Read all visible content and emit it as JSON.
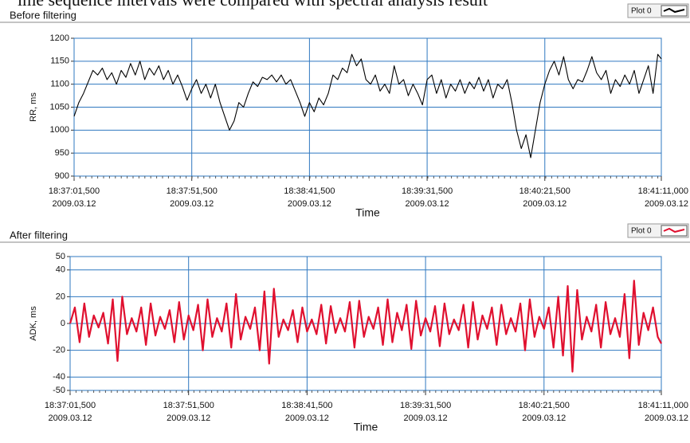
{
  "caption": "ime sequence intervals were compared with spectral analysis result",
  "chart_data": [
    {
      "type": "line",
      "title": "Before filtering",
      "ylabel": "RR, ms",
      "xlabel": "Time",
      "grid": true,
      "ylim": [
        900,
        1200
      ],
      "yticks": [
        900,
        950,
        1000,
        1050,
        1100,
        1150,
        1200
      ],
      "xlim": [
        67021.5,
        67271.0
      ],
      "xticks": [
        {
          "value": 67021.5,
          "label": "18:37:01,500",
          "date": "2009.03.12"
        },
        {
          "value": 67071.5,
          "label": "18:37:51,500",
          "date": "2009.03.12"
        },
        {
          "value": 67121.5,
          "label": "18:38:41,500",
          "date": "2009.03.12"
        },
        {
          "value": 67171.5,
          "label": "18:39:31,500",
          "date": "2009.03.12"
        },
        {
          "value": 67221.5,
          "label": "18:40:21,500",
          "date": "2009.03.12"
        },
        {
          "value": 67271.0,
          "label": "18:41:11,000",
          "date": "2009.03.12"
        }
      ],
      "x": [
        67021.5,
        67023.5,
        67025.5,
        67027.5,
        67029.5,
        67031.5,
        67033.5,
        67035.5,
        67037.5,
        67039.5,
        67041.5,
        67043.5,
        67045.5,
        67047.5,
        67049.5,
        67051.5,
        67053.5,
        67055.5,
        67057.5,
        67059.5,
        67061.5,
        67063.5,
        67065.5,
        67067.5,
        67069.5,
        67071.5,
        67073.5,
        67075.5,
        67077.5,
        67079.5,
        67081.5,
        67083.5,
        67085.5,
        67087.5,
        67089.5,
        67091.5,
        67093.5,
        67095.5,
        67097.5,
        67099.5,
        67101.5,
        67103.5,
        67105.5,
        67107.5,
        67109.5,
        67111.5,
        67113.5,
        67115.5,
        67117.5,
        67119.5,
        67121.5,
        67123.5,
        67125.5,
        67127.5,
        67129.5,
        67131.5,
        67133.5,
        67135.5,
        67137.5,
        67139.5,
        67141.5,
        67143.5,
        67145.5,
        67147.5,
        67149.5,
        67151.5,
        67153.5,
        67155.5,
        67157.5,
        67159.5,
        67161.5,
        67163.5,
        67165.5,
        67167.5,
        67169.5,
        67171.5,
        67173.5,
        67175.5,
        67177.5,
        67179.5,
        67181.5,
        67183.5,
        67185.5,
        67187.5,
        67189.5,
        67191.5,
        67193.5,
        67195.5,
        67197.5,
        67199.5,
        67201.5,
        67203.5,
        67205.5,
        67207.5,
        67209.5,
        67211.5,
        67213.5,
        67215.5,
        67217.5,
        67219.5,
        67221.5,
        67223.5,
        67225.5,
        67227.5,
        67229.5,
        67231.5,
        67233.5,
        67235.5,
        67237.5,
        67239.5,
        67241.5,
        67243.5,
        67245.5,
        67247.5,
        67249.5,
        67251.5,
        67253.5,
        67255.5,
        67257.5,
        67259.5,
        67261.5,
        67263.5,
        67265.5,
        67267.5,
        67269.5,
        67271.0
      ],
      "series": [
        {
          "name": "Plot 0",
          "color": "#000000",
          "values": [
            1030,
            1060,
            1080,
            1105,
            1130,
            1120,
            1135,
            1110,
            1125,
            1100,
            1130,
            1115,
            1145,
            1120,
            1150,
            1110,
            1135,
            1120,
            1140,
            1110,
            1130,
            1100,
            1120,
            1095,
            1065,
            1090,
            1110,
            1080,
            1100,
            1070,
            1100,
            1060,
            1030,
            1000,
            1020,
            1060,
            1050,
            1080,
            1105,
            1095,
            1115,
            1110,
            1120,
            1105,
            1120,
            1100,
            1110,
            1085,
            1060,
            1030,
            1060,
            1040,
            1070,
            1055,
            1080,
            1120,
            1110,
            1135,
            1125,
            1165,
            1140,
            1155,
            1110,
            1100,
            1120,
            1085,
            1100,
            1080,
            1140,
            1100,
            1110,
            1075,
            1100,
            1080,
            1055,
            1110,
            1120,
            1080,
            1110,
            1070,
            1100,
            1085,
            1110,
            1080,
            1105,
            1090,
            1115,
            1085,
            1110,
            1070,
            1100,
            1090,
            1110,
            1060,
            1000,
            960,
            990,
            940,
            1000,
            1060,
            1100,
            1130,
            1150,
            1120,
            1160,
            1110,
            1090,
            1110,
            1105,
            1130,
            1160,
            1125,
            1110,
            1130,
            1080,
            1110,
            1095,
            1120,
            1100,
            1130,
            1080,
            1110,
            1140,
            1080,
            1165,
            1155
          ]
        }
      ]
    },
    {
      "type": "line",
      "title": "After filtering",
      "ylabel": "ADK, ms",
      "xlabel": "Time",
      "grid": true,
      "ylim": [
        -50,
        50
      ],
      "yticks": [
        -50,
        -40,
        -20,
        0,
        20,
        40,
        50
      ],
      "xlim": [
        67021.5,
        67271.0
      ],
      "xticks": [
        {
          "value": 67021.5,
          "label": "18:37:01,500",
          "date": "2009.03.12"
        },
        {
          "value": 67071.5,
          "label": "18:37:51,500",
          "date": "2009.03.12"
        },
        {
          "value": 67121.5,
          "label": "18:38:41,500",
          "date": "2009.03.12"
        },
        {
          "value": 67171.5,
          "label": "18:39:31,500",
          "date": "2009.03.12"
        },
        {
          "value": 67221.5,
          "label": "18:40:21,500",
          "date": "2009.03.12"
        },
        {
          "value": 67271.0,
          "label": "18:41:11,000",
          "date": "2009.03.12"
        }
      ],
      "x": [
        67021.5,
        67023.5,
        67025.5,
        67027.5,
        67029.5,
        67031.5,
        67033.5,
        67035.5,
        67037.5,
        67039.5,
        67041.5,
        67043.5,
        67045.5,
        67047.5,
        67049.5,
        67051.5,
        67053.5,
        67055.5,
        67057.5,
        67059.5,
        67061.5,
        67063.5,
        67065.5,
        67067.5,
        67069.5,
        67071.5,
        67073.5,
        67075.5,
        67077.5,
        67079.5,
        67081.5,
        67083.5,
        67085.5,
        67087.5,
        67089.5,
        67091.5,
        67093.5,
        67095.5,
        67097.5,
        67099.5,
        67101.5,
        67103.5,
        67105.5,
        67107.5,
        67109.5,
        67111.5,
        67113.5,
        67115.5,
        67117.5,
        67119.5,
        67121.5,
        67123.5,
        67125.5,
        67127.5,
        67129.5,
        67131.5,
        67133.5,
        67135.5,
        67137.5,
        67139.5,
        67141.5,
        67143.5,
        67145.5,
        67147.5,
        67149.5,
        67151.5,
        67153.5,
        67155.5,
        67157.5,
        67159.5,
        67161.5,
        67163.5,
        67165.5,
        67167.5,
        67169.5,
        67171.5,
        67173.5,
        67175.5,
        67177.5,
        67179.5,
        67181.5,
        67183.5,
        67185.5,
        67187.5,
        67189.5,
        67191.5,
        67193.5,
        67195.5,
        67197.5,
        67199.5,
        67201.5,
        67203.5,
        67205.5,
        67207.5,
        67209.5,
        67211.5,
        67213.5,
        67215.5,
        67217.5,
        67219.5,
        67221.5,
        67223.5,
        67225.5,
        67227.5,
        67229.5,
        67231.5,
        67233.5,
        67235.5,
        67237.5,
        67239.5,
        67241.5,
        67243.5,
        67245.5,
        67247.5,
        67249.5,
        67251.5,
        67253.5,
        67255.5,
        67257.5,
        67259.5,
        67261.5,
        67263.5,
        67265.5,
        67267.5,
        67269.5,
        67271.0
      ],
      "series": [
        {
          "name": "Plot 0",
          "color": "#e0102f",
          "values": [
            0,
            12,
            -14,
            15,
            -10,
            6,
            -3,
            8,
            -15,
            18,
            -28,
            20,
            -8,
            4,
            -6,
            12,
            -16,
            15,
            -9,
            5,
            -4,
            10,
            -14,
            16,
            -12,
            6,
            -5,
            14,
            -20,
            18,
            -10,
            4,
            -6,
            15,
            -18,
            22,
            -12,
            5,
            -4,
            12,
            -20,
            24,
            -30,
            26,
            -10,
            3,
            -5,
            10,
            -14,
            12,
            -6,
            3,
            -8,
            14,
            -15,
            13,
            -7,
            4,
            -6,
            16,
            -18,
            17,
            -10,
            5,
            -4,
            12,
            -16,
            18,
            -14,
            8,
            -5,
            14,
            -19,
            17,
            -9,
            4,
            -6,
            13,
            -17,
            15,
            -8,
            3,
            -5,
            14,
            -18,
            16,
            -12,
            6,
            -4,
            12,
            -16,
            14,
            -8,
            4,
            -6,
            15,
            -20,
            18,
            -10,
            5,
            -4,
            12,
            -18,
            20,
            -24,
            28,
            -36,
            25,
            -12,
            5,
            -6,
            14,
            -18,
            16,
            -8,
            4,
            -10,
            22,
            -26,
            32,
            -16,
            8,
            -5,
            12,
            -10,
            -15
          ]
        }
      ]
    }
  ]
}
